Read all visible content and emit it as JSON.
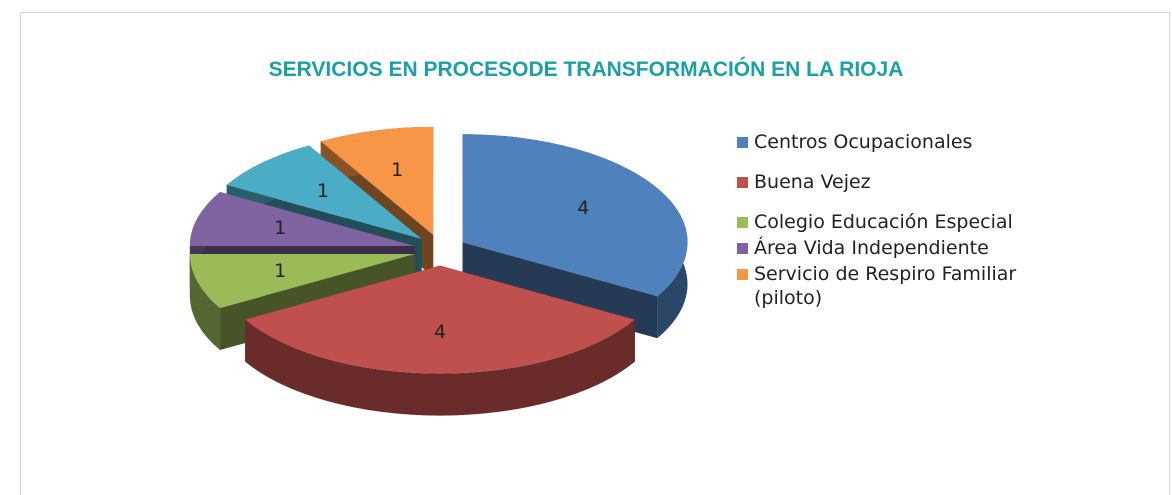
{
  "chart_data": {
    "type": "pie3d",
    "title": "SERVICIOS EN PROCESODE TRANSFORMACIÓN EN LA RIOJA",
    "categories": [
      "Centros Ocupacionales",
      "Buena Vejez",
      "Colegio Educación Especial",
      "Área Vida Independiente",
      null,
      "Servicio de Respiro Familiar (piloto)"
    ],
    "values": [
      4,
      4,
      1,
      1,
      1,
      1
    ],
    "colors": [
      "#4f81bd",
      "#c0504d",
      "#9bbb59",
      "#8064a2",
      "#4bacc6",
      "#f79646"
    ],
    "legend": "right"
  }
}
